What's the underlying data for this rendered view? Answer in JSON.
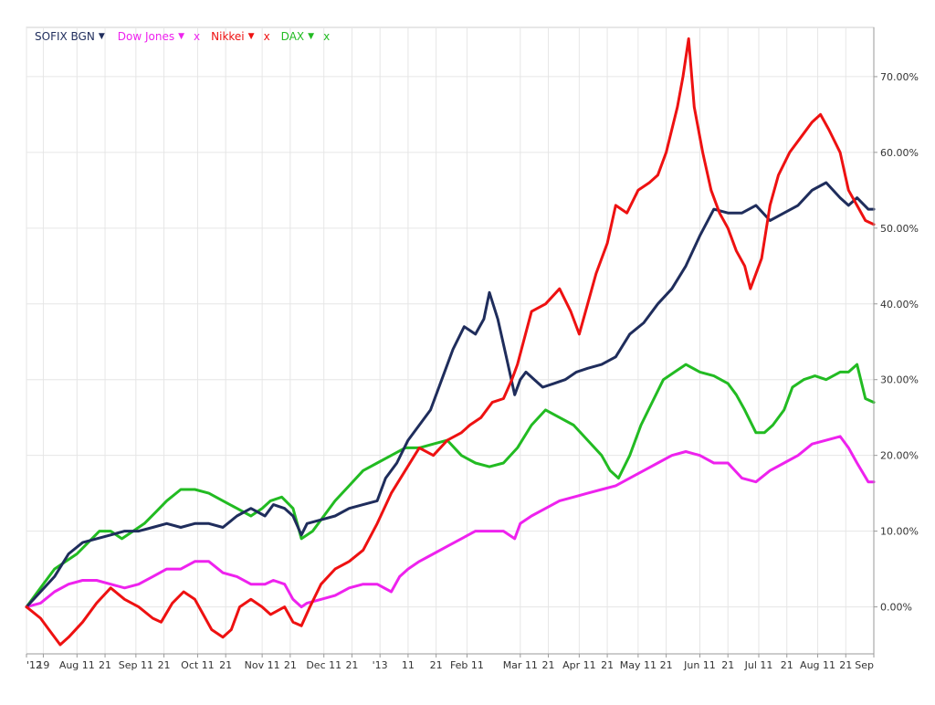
{
  "chart_data": {
    "type": "line",
    "x_ticks": [
      "'12",
      "19",
      "Aug 11",
      "21",
      "Sep 11",
      "21",
      "Oct 11",
      "21",
      "Nov 11",
      "21",
      "Dec 11",
      "21",
      "'13",
      "11",
      "21",
      "Feb 11",
      "Mar 11",
      "21",
      "Apr 11",
      "21",
      "May 11",
      "21",
      "Jun 11",
      "21",
      "Jul 11",
      "21",
      "Aug 11",
      "21",
      "Sep"
    ],
    "x_tick_pos": [
      0,
      6,
      18,
      28,
      39,
      49,
      61,
      71,
      84,
      94,
      106,
      116,
      126,
      136,
      146,
      157,
      176,
      186,
      197,
      207,
      218,
      228,
      240,
      250,
      261,
      271,
      282,
      292,
      302
    ],
    "x_range": [
      0,
      302
    ],
    "y_ticks": [
      "0.00%",
      "10.00%",
      "20.00%",
      "30.00%",
      "40.00%",
      "50.00%",
      "60.00%",
      "70.00%"
    ],
    "y_tick_values": [
      0,
      10,
      20,
      30,
      40,
      50,
      60,
      70
    ],
    "ylim": [
      -6.2,
      76.5
    ],
    "grid": true,
    "legend_position": "top-left",
    "series": [
      {
        "name": "SOFIX BGN",
        "color": "#1f2d5c",
        "removable": false,
        "points": [
          [
            0,
            0
          ],
          [
            5,
            2
          ],
          [
            10,
            4
          ],
          [
            15,
            7
          ],
          [
            20,
            8.5
          ],
          [
            25,
            9
          ],
          [
            30,
            9.5
          ],
          [
            35,
            10
          ],
          [
            40,
            10
          ],
          [
            45,
            10.5
          ],
          [
            50,
            11
          ],
          [
            55,
            10.5
          ],
          [
            60,
            11
          ],
          [
            65,
            11
          ],
          [
            70,
            10.5
          ],
          [
            75,
            12
          ],
          [
            80,
            13
          ],
          [
            85,
            12
          ],
          [
            88,
            13.5
          ],
          [
            92,
            13
          ],
          [
            95,
            12
          ],
          [
            98,
            9.5
          ],
          [
            100,
            11
          ],
          [
            105,
            11.5
          ],
          [
            110,
            12
          ],
          [
            115,
            13
          ],
          [
            120,
            13.5
          ],
          [
            125,
            14
          ],
          [
            128,
            17
          ],
          [
            132,
            19
          ],
          [
            136,
            22
          ],
          [
            140,
            24
          ],
          [
            144,
            26
          ],
          [
            148,
            30
          ],
          [
            152,
            34
          ],
          [
            156,
            37
          ],
          [
            160,
            36
          ],
          [
            163,
            38
          ],
          [
            165,
            41.5
          ],
          [
            168,
            38
          ],
          [
            171,
            33
          ],
          [
            174,
            28
          ],
          [
            176,
            30
          ],
          [
            178,
            31
          ],
          [
            181,
            30
          ],
          [
            184,
            29
          ],
          [
            188,
            29.5
          ],
          [
            192,
            30
          ],
          [
            196,
            31
          ],
          [
            200,
            31.5
          ],
          [
            205,
            32
          ],
          [
            210,
            33
          ],
          [
            215,
            36
          ],
          [
            220,
            37.5
          ],
          [
            225,
            40
          ],
          [
            230,
            42
          ],
          [
            235,
            45
          ],
          [
            240,
            49
          ],
          [
            245,
            52.5
          ],
          [
            250,
            52
          ],
          [
            255,
            52
          ],
          [
            260,
            53
          ],
          [
            265,
            51
          ],
          [
            270,
            52
          ],
          [
            275,
            53
          ],
          [
            280,
            55
          ],
          [
            285,
            56
          ],
          [
            290,
            54
          ],
          [
            293,
            53
          ],
          [
            296,
            54
          ],
          [
            300,
            52.5
          ],
          [
            302,
            52.5
          ]
        ]
      },
      {
        "name": "Dow Jones",
        "color": "#ee22ee",
        "removable": true,
        "points": [
          [
            0,
            0
          ],
          [
            5,
            0.5
          ],
          [
            10,
            2
          ],
          [
            15,
            3
          ],
          [
            20,
            3.5
          ],
          [
            25,
            3.5
          ],
          [
            30,
            3
          ],
          [
            35,
            2.5
          ],
          [
            40,
            3
          ],
          [
            45,
            4
          ],
          [
            50,
            5
          ],
          [
            55,
            5
          ],
          [
            60,
            6
          ],
          [
            65,
            6
          ],
          [
            70,
            4.5
          ],
          [
            75,
            4
          ],
          [
            80,
            3
          ],
          [
            85,
            3
          ],
          [
            88,
            3.5
          ],
          [
            92,
            3
          ],
          [
            95,
            1
          ],
          [
            98,
            0
          ],
          [
            100,
            0.5
          ],
          [
            105,
            1
          ],
          [
            110,
            1.5
          ],
          [
            115,
            2.5
          ],
          [
            120,
            3
          ],
          [
            125,
            3
          ],
          [
            130,
            2
          ],
          [
            133,
            4
          ],
          [
            136,
            5
          ],
          [
            140,
            6
          ],
          [
            145,
            7
          ],
          [
            150,
            8
          ],
          [
            155,
            9
          ],
          [
            160,
            10
          ],
          [
            165,
            10
          ],
          [
            170,
            10
          ],
          [
            174,
            9
          ],
          [
            176,
            11
          ],
          [
            180,
            12
          ],
          [
            185,
            13
          ],
          [
            190,
            14
          ],
          [
            195,
            14.5
          ],
          [
            200,
            15
          ],
          [
            205,
            15.5
          ],
          [
            210,
            16
          ],
          [
            215,
            17
          ],
          [
            220,
            18
          ],
          [
            225,
            19
          ],
          [
            230,
            20
          ],
          [
            235,
            20.5
          ],
          [
            240,
            20
          ],
          [
            245,
            19
          ],
          [
            250,
            19
          ],
          [
            255,
            17
          ],
          [
            260,
            16.5
          ],
          [
            265,
            18
          ],
          [
            270,
            19
          ],
          [
            275,
            20
          ],
          [
            280,
            21.5
          ],
          [
            285,
            22
          ],
          [
            290,
            22.5
          ],
          [
            293,
            21
          ],
          [
            296,
            19
          ],
          [
            300,
            16.5
          ],
          [
            302,
            16.5
          ]
        ]
      },
      {
        "name": "Nikkei",
        "color": "#ee1111",
        "removable": true,
        "points": [
          [
            0,
            0
          ],
          [
            5,
            -1.5
          ],
          [
            8,
            -3
          ],
          [
            12,
            -5
          ],
          [
            15,
            -4
          ],
          [
            20,
            -2
          ],
          [
            25,
            0.5
          ],
          [
            30,
            2.5
          ],
          [
            35,
            1
          ],
          [
            40,
            0
          ],
          [
            45,
            -1.5
          ],
          [
            48,
            -2
          ],
          [
            52,
            0.5
          ],
          [
            56,
            2
          ],
          [
            60,
            1
          ],
          [
            63,
            -1
          ],
          [
            66,
            -3
          ],
          [
            70,
            -4
          ],
          [
            73,
            -3
          ],
          [
            76,
            0
          ],
          [
            80,
            1
          ],
          [
            84,
            0
          ],
          [
            87,
            -1
          ],
          [
            92,
            0
          ],
          [
            95,
            -2
          ],
          [
            98,
            -2.5
          ],
          [
            101,
            0
          ],
          [
            105,
            3
          ],
          [
            110,
            5
          ],
          [
            115,
            6
          ],
          [
            120,
            7.5
          ],
          [
            125,
            11
          ],
          [
            130,
            15
          ],
          [
            135,
            18
          ],
          [
            140,
            21
          ],
          [
            145,
            20
          ],
          [
            150,
            22
          ],
          [
            155,
            23
          ],
          [
            158,
            24
          ],
          [
            162,
            25
          ],
          [
            166,
            27
          ],
          [
            170,
            27.5
          ],
          [
            173,
            30
          ],
          [
            175,
            32
          ],
          [
            180,
            39
          ],
          [
            185,
            40
          ],
          [
            190,
            42
          ],
          [
            194,
            39
          ],
          [
            197,
            36
          ],
          [
            200,
            40
          ],
          [
            203,
            44
          ],
          [
            207,
            48
          ],
          [
            210,
            53
          ],
          [
            214,
            52
          ],
          [
            218,
            55
          ],
          [
            222,
            56
          ],
          [
            225,
            57
          ],
          [
            228,
            60
          ],
          [
            232,
            66
          ],
          [
            234,
            70
          ],
          [
            236,
            75
          ],
          [
            238,
            66
          ],
          [
            241,
            60
          ],
          [
            244,
            55
          ],
          [
            247,
            52
          ],
          [
            250,
            50
          ],
          [
            253,
            47
          ],
          [
            256,
            45
          ],
          [
            258,
            42
          ],
          [
            262,
            46
          ],
          [
            265,
            53
          ],
          [
            268,
            57
          ],
          [
            272,
            60
          ],
          [
            276,
            62
          ],
          [
            280,
            64
          ],
          [
            283,
            65
          ],
          [
            286,
            63
          ],
          [
            290,
            60
          ],
          [
            293,
            55
          ],
          [
            296,
            53
          ],
          [
            299,
            51
          ],
          [
            302,
            50.5
          ]
        ]
      },
      {
        "name": "DAX",
        "color": "#22bb22",
        "removable": true,
        "points": [
          [
            0,
            0
          ],
          [
            3,
            1.5
          ],
          [
            6,
            3
          ],
          [
            10,
            5
          ],
          [
            14,
            6
          ],
          [
            18,
            7
          ],
          [
            22,
            8.5
          ],
          [
            26,
            10
          ],
          [
            30,
            10
          ],
          [
            34,
            9
          ],
          [
            38,
            10
          ],
          [
            42,
            11
          ],
          [
            46,
            12.5
          ],
          [
            50,
            14
          ],
          [
            55,
            15.5
          ],
          [
            60,
            15.5
          ],
          [
            65,
            15
          ],
          [
            70,
            14
          ],
          [
            75,
            13
          ],
          [
            80,
            12
          ],
          [
            84,
            13
          ],
          [
            87,
            14
          ],
          [
            91,
            14.5
          ],
          [
            95,
            13
          ],
          [
            98,
            9
          ],
          [
            102,
            10
          ],
          [
            106,
            12
          ],
          [
            110,
            14
          ],
          [
            115,
            16
          ],
          [
            120,
            18
          ],
          [
            125,
            19
          ],
          [
            130,
            20
          ],
          [
            135,
            21
          ],
          [
            140,
            21
          ],
          [
            145,
            21.5
          ],
          [
            150,
            22
          ],
          [
            155,
            20
          ],
          [
            160,
            19
          ],
          [
            165,
            18.5
          ],
          [
            170,
            19
          ],
          [
            175,
            21
          ],
          [
            180,
            24
          ],
          [
            185,
            26
          ],
          [
            190,
            25
          ],
          [
            195,
            24
          ],
          [
            200,
            22
          ],
          [
            205,
            20
          ],
          [
            208,
            18
          ],
          [
            211,
            17
          ],
          [
            215,
            20
          ],
          [
            219,
            24
          ],
          [
            223,
            27
          ],
          [
            227,
            30
          ],
          [
            231,
            31
          ],
          [
            235,
            32
          ],
          [
            240,
            31
          ],
          [
            245,
            30.5
          ],
          [
            250,
            29.5
          ],
          [
            253,
            28
          ],
          [
            256,
            26
          ],
          [
            260,
            23
          ],
          [
            263,
            23
          ],
          [
            266,
            24
          ],
          [
            270,
            26
          ],
          [
            273,
            29
          ],
          [
            277,
            30
          ],
          [
            281,
            30.5
          ],
          [
            285,
            30
          ],
          [
            290,
            31
          ],
          [
            293,
            31
          ],
          [
            296,
            32
          ],
          [
            299,
            27.5
          ],
          [
            302,
            27
          ]
        ]
      }
    ]
  },
  "legend": [
    {
      "label": "SOFIX BGN",
      "arrow": "▼",
      "remove": ""
    },
    {
      "label": "Dow Jones",
      "arrow": "▼",
      "remove": "x"
    },
    {
      "label": "Nikkei",
      "arrow": "▼",
      "remove": "x"
    },
    {
      "label": "DAX",
      "arrow": "▼",
      "remove": "x"
    }
  ]
}
